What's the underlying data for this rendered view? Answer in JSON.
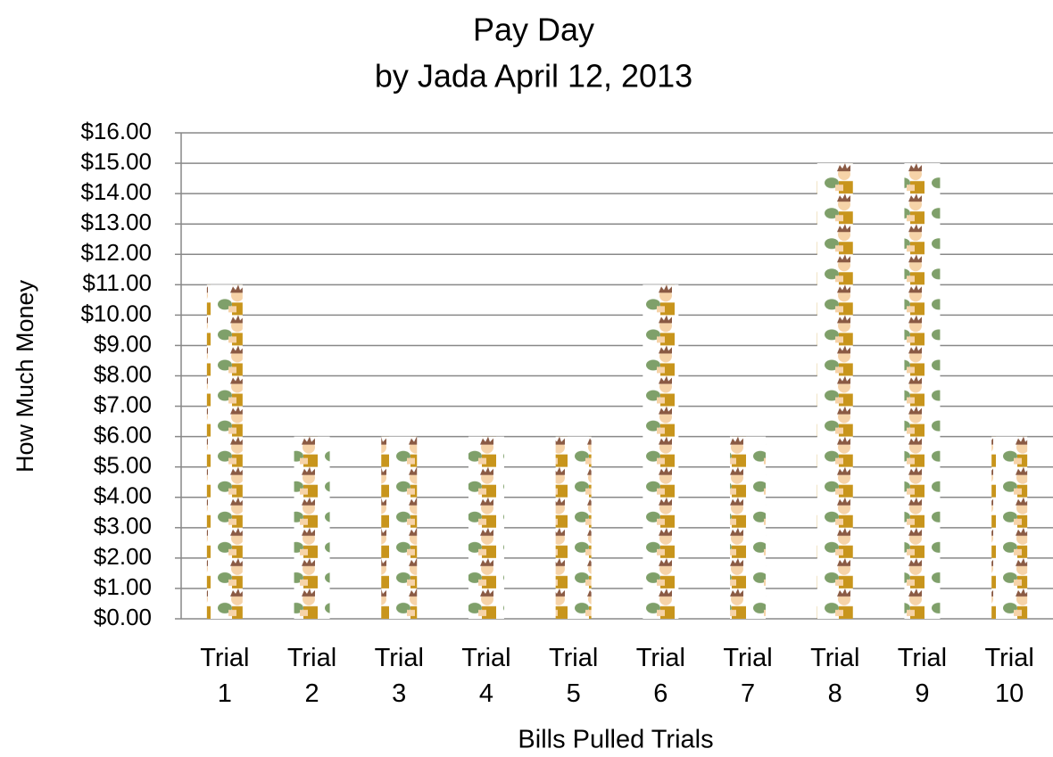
{
  "chart_data": {
    "type": "bar",
    "title": "Pay Day",
    "subtitle": "by Jada April 12, 2013",
    "x_label": "Bills Pulled Trials",
    "y_label": "How Much Money",
    "categories": [
      "Trial 1",
      "Trial 2",
      "Trial 3",
      "Trial 4",
      "Trial 5",
      "Trial 6",
      "Trial 7",
      "Trial 8",
      "Trial 9",
      "Trial 10"
    ],
    "values": [
      11,
      6,
      6,
      6,
      6,
      11,
      6,
      15,
      15,
      6
    ],
    "ylim": [
      0,
      16
    ],
    "yticks": [
      {
        "value": 0,
        "label": "$0.00"
      },
      {
        "value": 1,
        "label": "$1.00"
      },
      {
        "value": 2,
        "label": "$2.00"
      },
      {
        "value": 3,
        "label": "$3.00"
      },
      {
        "value": 4,
        "label": "$4.00"
      },
      {
        "value": 5,
        "label": "$5.00"
      },
      {
        "value": 6,
        "label": "$6.00"
      },
      {
        "value": 7,
        "label": "$7.00"
      },
      {
        "value": 8,
        "label": "$8.00"
      },
      {
        "value": 9,
        "label": "$9.00"
      },
      {
        "value": 10,
        "label": "$10.00"
      },
      {
        "value": 11,
        "label": "$11.00"
      },
      {
        "value": 12,
        "label": "$12.00"
      },
      {
        "value": 13,
        "label": "$13.00"
      },
      {
        "value": 14,
        "label": "$14.00"
      },
      {
        "value": 15,
        "label": "$15.00"
      },
      {
        "value": 16,
        "label": "$16.00"
      }
    ],
    "grid": true
  }
}
